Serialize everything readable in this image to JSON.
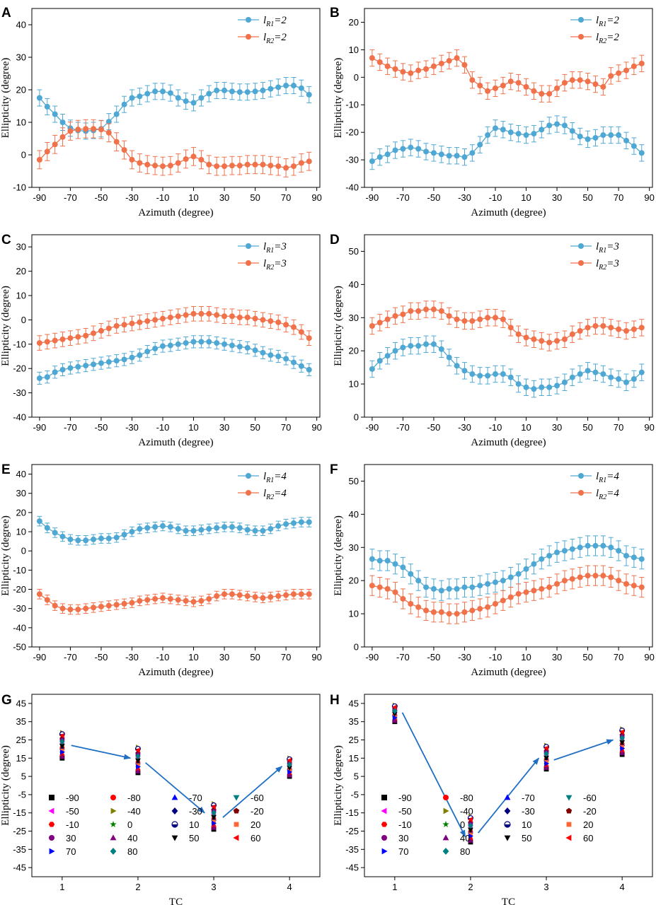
{
  "colors": {
    "blue": "#4fa8d4",
    "orange": "#f0714a",
    "arrow": "#1f6fc4",
    "axis": "#000000"
  },
  "azimuth": [
    -90,
    -85,
    -80,
    -75,
    -70,
    -65,
    -60,
    -55,
    -50,
    -45,
    -40,
    -35,
    -30,
    -25,
    -20,
    -15,
    -10,
    -5,
    0,
    5,
    10,
    15,
    20,
    25,
    30,
    35,
    40,
    45,
    50,
    55,
    60,
    65,
    70,
    75,
    80,
    85
  ],
  "chart_data": [
    {
      "panel": "A",
      "type": "line",
      "xlabel": "Azimuth (degree)",
      "ylabel": "Ellipticity (degree)",
      "xlim": [
        -95,
        92
      ],
      "ylim": [
        -10,
        45
      ],
      "xticks": [
        -90,
        -70,
        -50,
        -30,
        -10,
        10,
        30,
        50,
        70,
        90
      ],
      "yticks": [
        -10,
        0,
        10,
        20,
        30,
        40
      ],
      "series": [
        {
          "name": "l_R1=2",
          "base": "l",
          "sub": "R1",
          "suffix": "=2",
          "color": "blue",
          "err": 2.5,
          "values": [
            17.5,
            14.8,
            12.5,
            10.0,
            8.2,
            7.5,
            7.3,
            7.5,
            8.0,
            10.2,
            12.5,
            15.5,
            17.5,
            18.0,
            18.8,
            19.5,
            19.5,
            19.0,
            17.5,
            16.5,
            16.0,
            17.5,
            18.8,
            19.8,
            19.8,
            19.5,
            19.3,
            19.3,
            19.5,
            19.8,
            20.3,
            20.8,
            21.3,
            21.3,
            20.5,
            18.5
          ]
        },
        {
          "name": "l_R2=2",
          "base": "l",
          "sub": "R2",
          "suffix": "=2",
          "color": "orange",
          "err": 2.8,
          "values": [
            -1.5,
            1.0,
            3.2,
            5.5,
            7.3,
            7.8,
            8.0,
            8.0,
            7.8,
            6.8,
            4.0,
            1.5,
            -1.5,
            -2.5,
            -3.0,
            -3.3,
            -3.5,
            -3.3,
            -2.5,
            -1.3,
            -0.5,
            -1.5,
            -3.0,
            -3.5,
            -3.5,
            -3.3,
            -3.3,
            -3.0,
            -3.0,
            -3.0,
            -3.3,
            -3.5,
            -4.0,
            -3.5,
            -2.5,
            -2.0
          ]
        }
      ],
      "legend": "top-right"
    },
    {
      "panel": "B",
      "type": "line",
      "xlabel": "Azimuth (degree)",
      "ylabel": "Ellipticity (degree)",
      "xlim": [
        -95,
        92
      ],
      "ylim": [
        -40,
        25
      ],
      "xticks": [
        -90,
        -70,
        -50,
        -30,
        -10,
        10,
        30,
        50,
        70,
        90
      ],
      "yticks": [
        -40,
        -30,
        -20,
        -10,
        0,
        10,
        20
      ],
      "series": [
        {
          "name": "l_R1=2",
          "base": "l",
          "sub": "R1",
          "suffix": "=2",
          "color": "blue",
          "err": 3.0,
          "values": [
            -30.5,
            -29.0,
            -28.0,
            -26.5,
            -26.0,
            -25.5,
            -26.0,
            -27.0,
            -27.5,
            -28.0,
            -28.5,
            -28.5,
            -29.0,
            -27.5,
            -24.5,
            -21.0,
            -18.5,
            -19.0,
            -20.0,
            -20.5,
            -21.0,
            -20.5,
            -19.0,
            -17.5,
            -17.0,
            -17.5,
            -19.5,
            -21.5,
            -22.5,
            -22.0,
            -21.0,
            -21.0,
            -21.0,
            -23.0,
            -25.0,
            -27.5
          ]
        },
        {
          "name": "l_R2=2",
          "base": "l",
          "sub": "R2",
          "suffix": "=2",
          "color": "orange",
          "err": 3.0,
          "values": [
            7.0,
            5.5,
            4.0,
            3.0,
            2.0,
            1.5,
            2.5,
            3.0,
            4.0,
            5.0,
            6.0,
            7.0,
            4.5,
            -1.0,
            -3.0,
            -5.0,
            -4.0,
            -3.0,
            -1.5,
            -2.0,
            -3.5,
            -5.0,
            -6.0,
            -6.0,
            -4.0,
            -2.0,
            -1.0,
            -1.0,
            -1.5,
            -2.5,
            -3.5,
            0.5,
            1.5,
            2.5,
            4.0,
            5.0
          ]
        }
      ],
      "legend": "top-right"
    },
    {
      "panel": "C",
      "type": "line",
      "xlabel": "Azimuth (degree)",
      "ylabel": "Ellipticity (degree)",
      "xlim": [
        -95,
        92
      ],
      "ylim": [
        -40,
        35
      ],
      "xticks": [
        -90,
        -70,
        -50,
        -30,
        -10,
        10,
        30,
        50,
        70,
        90
      ],
      "yticks": [
        -40,
        -30,
        -20,
        -10,
        0,
        10,
        20,
        30
      ],
      "series": [
        {
          "name": "l_R1=3",
          "base": "l",
          "sub": "R1",
          "suffix": "=3",
          "color": "blue",
          "err": 2.5,
          "values": [
            -24.0,
            -23.5,
            -21.5,
            -20.5,
            -19.8,
            -19.3,
            -18.8,
            -18.3,
            -17.8,
            -17.3,
            -16.8,
            -16.3,
            -15.5,
            -14.5,
            -13.0,
            -11.8,
            -10.8,
            -10.5,
            -10.0,
            -9.5,
            -9.0,
            -9.0,
            -9.0,
            -9.5,
            -10.0,
            -10.5,
            -11.0,
            -11.5,
            -12.5,
            -13.5,
            -14.5,
            -15.0,
            -16.0,
            -17.5,
            -19.0,
            -20.5
          ]
        },
        {
          "name": "l_R2=3",
          "base": "l",
          "sub": "R2",
          "suffix": "=3",
          "color": "orange",
          "err": 3.0,
          "values": [
            -9.5,
            -9.0,
            -8.5,
            -8.0,
            -7.5,
            -7.0,
            -6.5,
            -5.5,
            -4.5,
            -3.5,
            -2.5,
            -2.0,
            -1.5,
            -1.0,
            -0.5,
            0.0,
            0.5,
            1.0,
            1.5,
            2.0,
            2.5,
            2.5,
            2.5,
            2.0,
            1.5,
            1.5,
            1.0,
            1.0,
            0.5,
            0.0,
            -0.5,
            -1.0,
            -2.0,
            -3.0,
            -5.0,
            -7.5
          ]
        }
      ],
      "legend": "top-right"
    },
    {
      "panel": "D",
      "type": "line",
      "xlabel": "Azimuth (degree)",
      "ylabel": "Ellipticity (degree)",
      "xlim": [
        -95,
        92
      ],
      "ylim": [
        0,
        55
      ],
      "xticks": [
        -90,
        -70,
        -50,
        -30,
        -10,
        10,
        30,
        50,
        70,
        90
      ],
      "yticks": [
        0,
        10,
        20,
        30,
        40,
        50
      ],
      "series": [
        {
          "name": "l_R1=3",
          "base": "l",
          "sub": "R1",
          "suffix": "=3",
          "color": "blue",
          "err": 2.5,
          "values": [
            14.5,
            17.0,
            18.5,
            20.0,
            21.0,
            21.5,
            21.5,
            22.0,
            22.0,
            20.5,
            18.0,
            15.5,
            14.0,
            13.0,
            12.5,
            12.5,
            13.0,
            13.0,
            12.0,
            10.0,
            9.0,
            8.5,
            9.0,
            9.0,
            9.5,
            10.5,
            12.0,
            13.0,
            14.0,
            13.5,
            13.0,
            12.0,
            11.5,
            10.5,
            11.5,
            13.5
          ]
        },
        {
          "name": "l_R2=3",
          "base": "l",
          "sub": "R2",
          "suffix": "=3",
          "color": "orange",
          "err": 2.5,
          "values": [
            27.5,
            28.5,
            29.5,
            30.5,
            31.0,
            32.0,
            32.0,
            32.5,
            32.5,
            32.0,
            30.5,
            29.5,
            29.0,
            29.0,
            29.5,
            30.0,
            30.0,
            29.5,
            27.0,
            25.0,
            24.0,
            23.5,
            23.0,
            22.5,
            23.0,
            23.5,
            25.0,
            26.0,
            27.0,
            27.5,
            27.5,
            27.0,
            26.5,
            26.0,
            26.5,
            27.0
          ]
        }
      ],
      "legend": "top-right"
    },
    {
      "panel": "E",
      "type": "line",
      "xlabel": "Azimuth (degree)",
      "ylabel": "Ellipticity (degree)",
      "xlim": [
        -95,
        92
      ],
      "ylim": [
        -50,
        45
      ],
      "xticks": [
        -90,
        -70,
        -50,
        -30,
        -10,
        10,
        30,
        50,
        70,
        90
      ],
      "yticks": [
        -50,
        -40,
        -30,
        -20,
        -10,
        0,
        10,
        20,
        30,
        40
      ],
      "series": [
        {
          "name": "l_R1=4",
          "base": "l",
          "sub": "R1",
          "suffix": "=4",
          "color": "blue",
          "err": 2.5,
          "values": [
            15.5,
            12.0,
            9.5,
            7.5,
            6.0,
            5.5,
            5.5,
            6.0,
            6.5,
            6.5,
            7.0,
            8.5,
            10.0,
            11.5,
            12.0,
            12.5,
            13.0,
            12.5,
            11.5,
            10.5,
            10.5,
            11.0,
            11.5,
            12.0,
            12.5,
            12.5,
            12.0,
            11.0,
            10.5,
            10.5,
            11.5,
            13.0,
            14.0,
            14.5,
            15.0,
            15.0
          ]
        },
        {
          "name": "l_R2=4",
          "base": "l",
          "sub": "R2",
          "suffix": "=4",
          "color": "orange",
          "err": 2.5,
          "values": [
            -22.5,
            -25.5,
            -28.5,
            -30.0,
            -30.5,
            -30.5,
            -30.0,
            -29.5,
            -29.0,
            -28.5,
            -28.0,
            -27.5,
            -27.0,
            -26.0,
            -25.5,
            -25.0,
            -24.5,
            -25.0,
            -25.5,
            -26.0,
            -26.5,
            -26.0,
            -25.0,
            -23.5,
            -22.5,
            -22.5,
            -23.0,
            -23.5,
            -24.0,
            -24.5,
            -24.0,
            -23.5,
            -23.0,
            -22.5,
            -22.5,
            -22.5
          ]
        }
      ],
      "legend": "top-right"
    },
    {
      "panel": "F",
      "type": "line",
      "xlabel": "Azimuth (degree)",
      "ylabel": "Ellipticity (degree)",
      "xlim": [
        -95,
        92
      ],
      "ylim": [
        0,
        55
      ],
      "xticks": [
        -90,
        -70,
        -50,
        -30,
        -10,
        10,
        30,
        50,
        70,
        90
      ],
      "yticks": [
        0,
        10,
        20,
        30,
        40,
        50
      ],
      "series": [
        {
          "name": "l_R1=4",
          "base": "l",
          "sub": "R1",
          "suffix": "=4",
          "color": "blue",
          "err": 3.0,
          "values": [
            26.5,
            26.0,
            26.0,
            25.0,
            24.0,
            22.0,
            20.0,
            18.0,
            17.5,
            17.0,
            17.5,
            17.5,
            18.0,
            18.0,
            18.5,
            19.0,
            19.5,
            20.0,
            21.0,
            22.0,
            23.5,
            25.0,
            26.5,
            27.5,
            28.5,
            29.0,
            29.5,
            30.0,
            30.5,
            30.5,
            30.5,
            30.0,
            29.0,
            27.5,
            27.0,
            26.5
          ]
        },
        {
          "name": "l_R2=4",
          "base": "l",
          "sub": "R2",
          "suffix": "=4",
          "color": "orange",
          "err": 3.0,
          "values": [
            18.5,
            18.0,
            17.5,
            16.5,
            14.5,
            13.0,
            12.0,
            11.0,
            10.5,
            10.5,
            10.0,
            10.0,
            10.5,
            11.0,
            11.5,
            12.0,
            13.0,
            14.0,
            15.0,
            16.0,
            16.5,
            17.0,
            17.5,
            18.0,
            19.0,
            20.0,
            20.5,
            21.0,
            21.5,
            21.5,
            21.5,
            21.0,
            20.0,
            19.0,
            18.5,
            18.0
          ]
        }
      ],
      "legend": "top-right"
    },
    {
      "panel": "G",
      "type": "scatter",
      "xlabel": "TC",
      "ylabel": "Ellipticity (degree)",
      "xlim": [
        0.6,
        4.4
      ],
      "ylim": [
        -50,
        50
      ],
      "xticks": [
        1,
        2,
        3,
        4
      ],
      "yticks": [
        -45,
        -35,
        -25,
        -15,
        -5,
        5,
        15,
        25,
        35,
        45
      ],
      "groups": [
        {
          "tc": 1,
          "min": 15,
          "max": 29
        },
        {
          "tc": 2,
          "min": 7,
          "max": 21
        },
        {
          "tc": 3,
          "min": -24,
          "max": -10
        },
        {
          "tc": 4,
          "min": 5,
          "max": 15
        }
      ],
      "arrows": [
        {
          "from": [
            1.12,
            22
          ],
          "to": [
            1.9,
            15
          ]
        },
        {
          "from": [
            2.1,
            12.5
          ],
          "to": [
            2.88,
            -15
          ]
        },
        {
          "from": [
            3.12,
            -17.5
          ],
          "to": [
            3.9,
            10.5
          ]
        }
      ]
    },
    {
      "panel": "H",
      "type": "scatter",
      "xlabel": "TC",
      "ylabel": "Ellipticity (degree)",
      "xlim": [
        0.6,
        4.4
      ],
      "ylim": [
        -50,
        50
      ],
      "xticks": [
        1,
        2,
        3,
        4
      ],
      "yticks": [
        -45,
        -35,
        -25,
        -15,
        -5,
        5,
        15,
        25,
        35,
        45
      ],
      "groups": [
        {
          "tc": 1,
          "min": 35,
          "max": 44
        },
        {
          "tc": 2,
          "min": -31,
          "max": -17
        },
        {
          "tc": 3,
          "min": 9,
          "max": 22
        },
        {
          "tc": 4,
          "min": 17,
          "max": 31
        }
      ],
      "arrows": [
        {
          "from": [
            1.1,
            40
          ],
          "to": [
            1.93,
            -28
          ]
        },
        {
          "from": [
            2.1,
            -26
          ],
          "to": [
            2.9,
            15
          ]
        },
        {
          "from": [
            3.1,
            14
          ],
          "to": [
            3.88,
            25
          ]
        }
      ]
    }
  ],
  "scatter_legend": [
    {
      "label": "-90",
      "marker": "square",
      "color": "#000000"
    },
    {
      "label": "-80",
      "marker": "circle",
      "color": "#ff0000"
    },
    {
      "label": "-70",
      "marker": "triangle-up",
      "color": "#0000ff"
    },
    {
      "label": "-60",
      "marker": "triangle-down",
      "color": "#008080"
    },
    {
      "label": "-50",
      "marker": "triangle-left",
      "color": "#ff00ff"
    },
    {
      "label": "-40",
      "marker": "triangle-right",
      "color": "#808000"
    },
    {
      "label": "-30",
      "marker": "diamond",
      "color": "#000080"
    },
    {
      "label": "-20",
      "marker": "pentagon",
      "color": "#800000"
    },
    {
      "label": "-10",
      "marker": "hexagon",
      "color": "#ff0000"
    },
    {
      "label": "0",
      "marker": "star",
      "color": "#008000"
    },
    {
      "label": "10",
      "marker": "half-circle",
      "color": "#000080"
    },
    {
      "label": "20",
      "marker": "small-square",
      "color": "#ff6633"
    },
    {
      "label": "30",
      "marker": "circle",
      "color": "#800080"
    },
    {
      "label": "40",
      "marker": "triangle-up",
      "color": "#800080"
    },
    {
      "label": "50",
      "marker": "triangle-down",
      "color": "#000000"
    },
    {
      "label": "60",
      "marker": "triangle-left",
      "color": "#ff0000"
    },
    {
      "label": "70",
      "marker": "triangle-right",
      "color": "#0000ff"
    },
    {
      "label": "80",
      "marker": "diamond",
      "color": "#008080"
    }
  ]
}
